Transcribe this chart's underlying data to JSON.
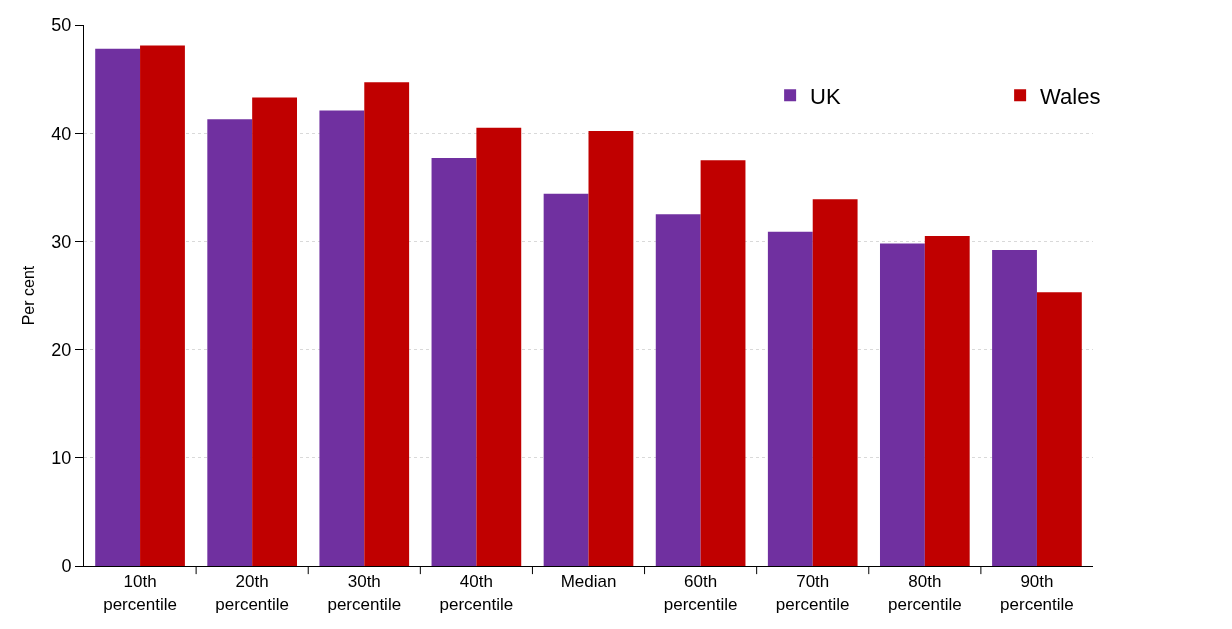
{
  "chart_data": {
    "type": "bar",
    "ylabel": "Per cent",
    "categories": [
      "10th percentile",
      "20th percentile",
      "30th percentile",
      "40th percentile",
      "Median",
      "60th percentile",
      "70th percentile",
      "80th percentile",
      "90th percentile"
    ],
    "series": [
      {
        "name": "UK",
        "color": "#7030a0",
        "values": [
          47.8,
          41.3,
          42.1,
          37.7,
          34.4,
          32.5,
          30.9,
          29.8,
          29.2
        ]
      },
      {
        "name": "Wales",
        "color": "#c00000",
        "values": [
          48.1,
          43.3,
          44.7,
          40.5,
          40.2,
          37.5,
          33.9,
          30.5,
          25.3
        ]
      }
    ],
    "ylim": [
      0,
      50
    ],
    "yticks": [
      0,
      10,
      20,
      30,
      40,
      50
    ],
    "grid": "y",
    "legend": "top right"
  }
}
